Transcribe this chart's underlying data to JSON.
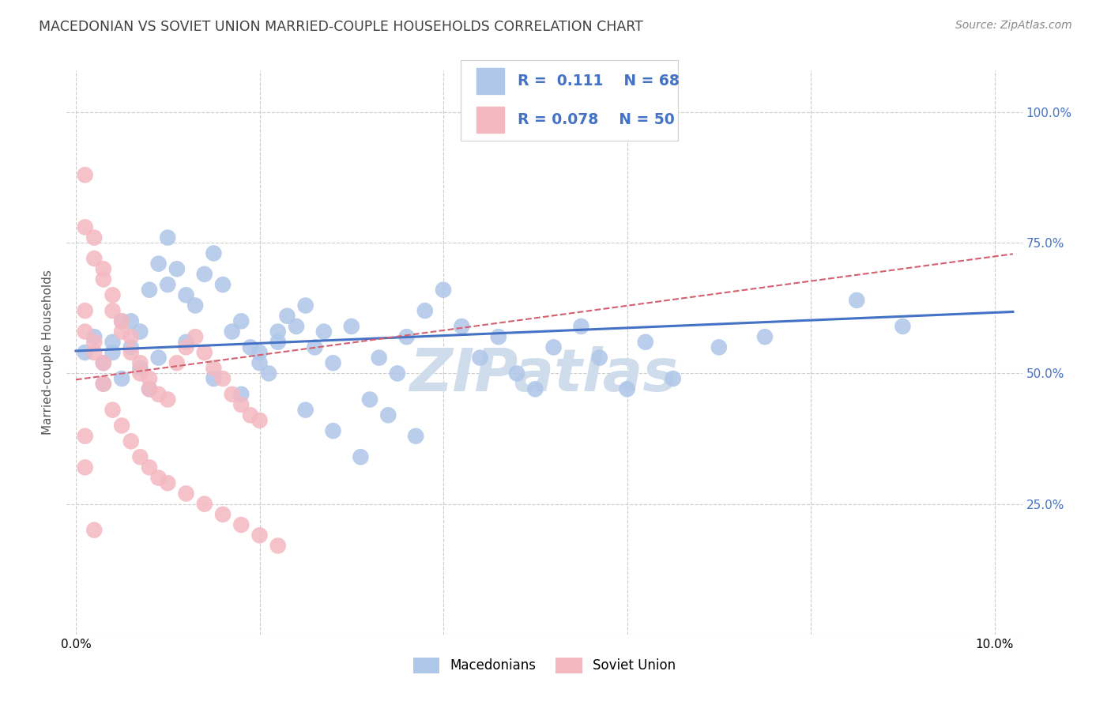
{
  "title": "MACEDONIAN VS SOVIET UNION MARRIED-COUPLE HOUSEHOLDS CORRELATION CHART",
  "source": "Source: ZipAtlas.com",
  "ylabel": "Married-couple Households",
  "macedonian_R": 0.111,
  "macedonian_N": 68,
  "soviet_R": 0.078,
  "soviet_N": 50,
  "macedonian_color": "#aec6e8",
  "soviet_color": "#f4b8c1",
  "macedonian_line_color": "#4472c4",
  "soviet_line_color": "#d45f6e",
  "background_color": "#ffffff",
  "grid_color": "#cccccc",
  "title_color": "#404040",
  "source_color": "#888888",
  "right_axis_color": "#4472c4",
  "watermark_color": "#cfdcec",
  "legend_border_color": "#d0d0d0",
  "mac_x": [
    0.001,
    0.002,
    0.003,
    0.004,
    0.005,
    0.006,
    0.007,
    0.008,
    0.009,
    0.01,
    0.011,
    0.012,
    0.013,
    0.014,
    0.015,
    0.016,
    0.017,
    0.018,
    0.019,
    0.02,
    0.021,
    0.022,
    0.023,
    0.024,
    0.025,
    0.026,
    0.027,
    0.028,
    0.03,
    0.032,
    0.033,
    0.035,
    0.036,
    0.038,
    0.04,
    0.042,
    0.044,
    0.046,
    0.048,
    0.05,
    0.052,
    0.055,
    0.057,
    0.06,
    0.062,
    0.065,
    0.07,
    0.075,
    0.003,
    0.004,
    0.005,
    0.006,
    0.007,
    0.008,
    0.009,
    0.01,
    0.012,
    0.015,
    0.018,
    0.02,
    0.022,
    0.025,
    0.028,
    0.031,
    0.034,
    0.037,
    0.085,
    0.09
  ],
  "mac_y": [
    0.54,
    0.57,
    0.52,
    0.56,
    0.49,
    0.6,
    0.58,
    0.66,
    0.71,
    0.76,
    0.7,
    0.65,
    0.63,
    0.69,
    0.73,
    0.67,
    0.58,
    0.6,
    0.55,
    0.52,
    0.5,
    0.56,
    0.61,
    0.59,
    0.63,
    0.55,
    0.58,
    0.52,
    0.59,
    0.45,
    0.53,
    0.5,
    0.57,
    0.62,
    0.66,
    0.59,
    0.53,
    0.57,
    0.5,
    0.47,
    0.55,
    0.59,
    0.53,
    0.47,
    0.56,
    0.49,
    0.55,
    0.57,
    0.48,
    0.54,
    0.6,
    0.55,
    0.51,
    0.47,
    0.53,
    0.67,
    0.56,
    0.49,
    0.46,
    0.54,
    0.58,
    0.43,
    0.39,
    0.34,
    0.42,
    0.38,
    0.64,
    0.59
  ],
  "sov_x": [
    0.001,
    0.001,
    0.002,
    0.002,
    0.003,
    0.003,
    0.004,
    0.004,
    0.005,
    0.005,
    0.006,
    0.006,
    0.007,
    0.007,
    0.008,
    0.008,
    0.009,
    0.01,
    0.011,
    0.012,
    0.013,
    0.014,
    0.015,
    0.016,
    0.017,
    0.018,
    0.019,
    0.02,
    0.001,
    0.001,
    0.002,
    0.002,
    0.003,
    0.003,
    0.004,
    0.005,
    0.006,
    0.007,
    0.008,
    0.009,
    0.01,
    0.012,
    0.014,
    0.016,
    0.018,
    0.02,
    0.022,
    0.001,
    0.001,
    0.002
  ],
  "sov_y": [
    0.88,
    0.78,
    0.76,
    0.72,
    0.7,
    0.68,
    0.65,
    0.62,
    0.6,
    0.58,
    0.57,
    0.54,
    0.52,
    0.5,
    0.49,
    0.47,
    0.46,
    0.45,
    0.52,
    0.55,
    0.57,
    0.54,
    0.51,
    0.49,
    0.46,
    0.44,
    0.42,
    0.41,
    0.62,
    0.58,
    0.56,
    0.54,
    0.52,
    0.48,
    0.43,
    0.4,
    0.37,
    0.34,
    0.32,
    0.3,
    0.29,
    0.27,
    0.25,
    0.23,
    0.21,
    0.19,
    0.17,
    0.38,
    0.32,
    0.2
  ],
  "mac_line_x0": 0.0,
  "mac_line_x1": 0.102,
  "mac_line_y0": 0.543,
  "mac_line_y1": 0.618,
  "sov_line_x0": 0.0,
  "sov_line_x1": 0.025,
  "sov_line_y0": 0.488,
  "sov_line_y1": 0.547,
  "xlim_min": -0.001,
  "xlim_max": 0.103,
  "ylim_min": 0.0,
  "ylim_max": 1.08
}
